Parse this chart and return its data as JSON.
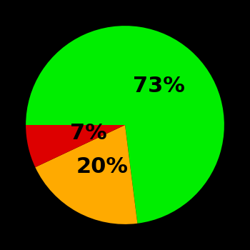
{
  "slices": [
    73,
    20,
    7
  ],
  "labels": [
    "73%",
    "20%",
    "7%"
  ],
  "colors": [
    "#00ee00",
    "#ffaa00",
    "#dd0000"
  ],
  "background_color": "#000000",
  "startangle": 180,
  "counterclock": false,
  "label_fontsize": 22,
  "label_fontweight": "bold",
  "label_colors": [
    "#000000",
    "#000000",
    "#000000"
  ],
  "label_radii": [
    0.52,
    0.48,
    0.38
  ]
}
